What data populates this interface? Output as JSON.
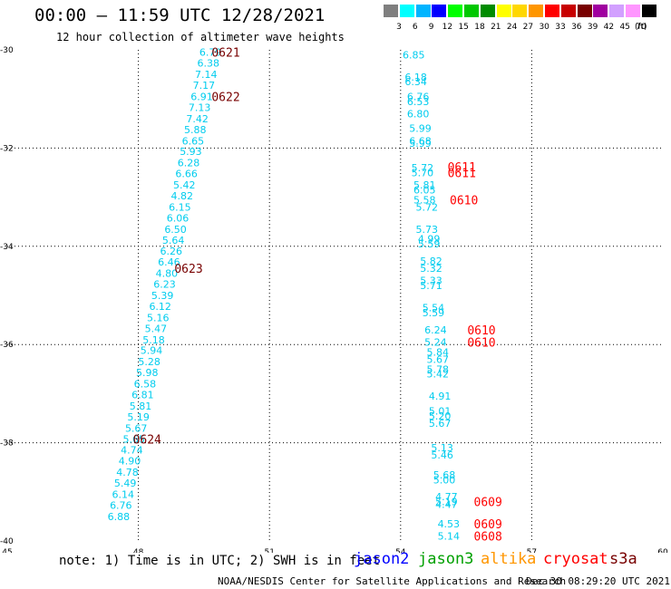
{
  "header": {
    "title": "00:00 – 11:59 UTC 12/28/2021",
    "subtitle": "12 hour collection of altimeter wave heights"
  },
  "legend": {
    "unit": "(ft)",
    "colors": [
      {
        "label": "3",
        "color": "#7f7f7f"
      },
      {
        "label": "6",
        "color": "#00ffff"
      },
      {
        "label": "9",
        "color": "#00b4ff"
      },
      {
        "label": "12",
        "color": "#0000ff"
      },
      {
        "label": "15",
        "color": "#00ff00"
      },
      {
        "label": "18",
        "color": "#00c800"
      },
      {
        "label": "21",
        "color": "#008c00"
      },
      {
        "label": "24",
        "color": "#ffff00"
      },
      {
        "label": "27",
        "color": "#ffd700"
      },
      {
        "label": "30",
        "color": "#ff9600"
      },
      {
        "label": "33",
        "color": "#ff0000"
      },
      {
        "label": "36",
        "color": "#c80000"
      },
      {
        "label": "39",
        "color": "#780000"
      },
      {
        "label": "42",
        "color": "#a000a0"
      },
      {
        "label": "45",
        "color": "#d2a0ff"
      },
      {
        "label": "70",
        "color": "#ff96ff"
      },
      {
        "label": "",
        "color": "#000000"
      }
    ]
  },
  "footer": {
    "note": "note: 1) Time is in UTC; 2) SWH is in feet",
    "satellites": [
      {
        "name": "jason2",
        "color": "#0000ff"
      },
      {
        "name": "jason3",
        "color": "#00a000"
      },
      {
        "name": "altika",
        "color": "#ff9600"
      },
      {
        "name": "cryosat",
        "color": "#ff0000"
      },
      {
        "name": "s3a",
        "color": "#780000"
      }
    ],
    "credit": "NOAA/NESDIS Center for Satellite Applications and Research",
    "timestamp": "Dec 30 08:29:20 UTC 2021"
  },
  "chart_data": {
    "type": "scatter",
    "xlim": [
      45,
      60
    ],
    "ylim": [
      -40,
      -30
    ],
    "x_ticks": [
      "45",
      "48",
      "51",
      "54",
      "57",
      "60"
    ],
    "y_ticks": [
      "-30",
      "-32",
      "-34",
      "-36",
      "-38",
      "-40"
    ],
    "grid": true,
    "value_color": "#00ccee",
    "time_colors": {
      "s3a": "#780000",
      "cryosat": "#ff0000"
    },
    "tracks": [
      {
        "name": "west",
        "points": [
          {
            "x": 49.65,
            "y": -30.05,
            "v": "6.79"
          },
          {
            "x": 49.6,
            "y": -30.27,
            "v": "6.38"
          },
          {
            "x": 49.55,
            "y": -30.5,
            "v": "7.14"
          },
          {
            "x": 49.5,
            "y": -30.72,
            "v": "7.17"
          },
          {
            "x": 49.45,
            "y": -30.95,
            "v": "6.91"
          },
          {
            "x": 49.4,
            "y": -31.17,
            "v": "7.13"
          },
          {
            "x": 49.35,
            "y": -31.4,
            "v": "7.42"
          },
          {
            "x": 49.3,
            "y": -31.62,
            "v": "5.88"
          },
          {
            "x": 49.25,
            "y": -31.85,
            "v": "6.65"
          },
          {
            "x": 49.2,
            "y": -32.07,
            "v": "5.93"
          },
          {
            "x": 49.15,
            "y": -32.3,
            "v": "6.28"
          },
          {
            "x": 49.1,
            "y": -32.52,
            "v": "6.66"
          },
          {
            "x": 49.05,
            "y": -32.75,
            "v": "5.42"
          },
          {
            "x": 49.0,
            "y": -32.97,
            "v": "4.82"
          },
          {
            "x": 48.95,
            "y": -33.2,
            "v": "6.15"
          },
          {
            "x": 48.9,
            "y": -33.42,
            "v": "6.06"
          },
          {
            "x": 48.85,
            "y": -33.65,
            "v": "6.50"
          },
          {
            "x": 48.8,
            "y": -33.87,
            "v": "5.64"
          },
          {
            "x": 48.75,
            "y": -34.1,
            "v": "6.26"
          },
          {
            "x": 48.7,
            "y": -34.32,
            "v": "6.46"
          },
          {
            "x": 48.65,
            "y": -34.55,
            "v": "4.80"
          },
          {
            "x": 48.6,
            "y": -34.77,
            "v": "6.23"
          },
          {
            "x": 48.55,
            "y": -35.0,
            "v": "5.39"
          },
          {
            "x": 48.5,
            "y": -35.22,
            "v": "6.12"
          },
          {
            "x": 48.45,
            "y": -35.45,
            "v": "5.16"
          },
          {
            "x": 48.4,
            "y": -35.67,
            "v": "5.47"
          },
          {
            "x": 48.35,
            "y": -35.9,
            "v": "5.18"
          },
          {
            "x": 48.3,
            "y": -36.12,
            "v": "5.94"
          },
          {
            "x": 48.25,
            "y": -36.35,
            "v": "5.28"
          },
          {
            "x": 48.2,
            "y": -36.57,
            "v": "5.98"
          },
          {
            "x": 48.15,
            "y": -36.8,
            "v": "6.58"
          },
          {
            "x": 48.1,
            "y": -37.02,
            "v": "6.81"
          },
          {
            "x": 48.05,
            "y": -37.25,
            "v": "5.81"
          },
          {
            "x": 48.0,
            "y": -37.47,
            "v": "5.19"
          },
          {
            "x": 47.95,
            "y": -37.7,
            "v": "5.67"
          },
          {
            "x": 47.9,
            "y": -37.92,
            "v": "5.65"
          },
          {
            "x": 47.85,
            "y": -38.15,
            "v": "4.74"
          },
          {
            "x": 47.8,
            "y": -38.37,
            "v": "4.90"
          },
          {
            "x": 47.75,
            "y": -38.6,
            "v": "4.78"
          },
          {
            "x": 47.7,
            "y": -38.82,
            "v": "5.49"
          },
          {
            "x": 47.65,
            "y": -39.05,
            "v": "6.14"
          },
          {
            "x": 47.6,
            "y": -39.27,
            "v": "6.76"
          },
          {
            "x": 47.55,
            "y": -39.5,
            "v": "6.88"
          }
        ]
      },
      {
        "name": "east",
        "points": [
          {
            "x": 54.3,
            "y": -30.1,
            "v": "6.85"
          },
          {
            "x": 54.35,
            "y": -30.55,
            "v": "6.18"
          },
          {
            "x": 54.35,
            "y": -30.65,
            "v": "6.34"
          },
          {
            "x": 54.4,
            "y": -30.95,
            "v": "6.76"
          },
          {
            "x": 54.4,
            "y": -31.05,
            "v": "6.53"
          },
          {
            "x": 54.4,
            "y": -31.3,
            "v": "6.80"
          },
          {
            "x": 54.45,
            "y": -31.6,
            "v": "5.99"
          },
          {
            "x": 54.45,
            "y": -31.85,
            "v": "6.68"
          },
          {
            "x": 54.45,
            "y": -31.9,
            "v": "5.99"
          },
          {
            "x": 54.5,
            "y": -32.4,
            "v": "5.72"
          },
          {
            "x": 54.5,
            "y": -32.5,
            "v": "5.70"
          },
          {
            "x": 54.55,
            "y": -32.75,
            "v": "5.81"
          },
          {
            "x": 54.55,
            "y": -32.85,
            "v": "6.05"
          },
          {
            "x": 54.55,
            "y": -33.05,
            "v": "5.58"
          },
          {
            "x": 54.6,
            "y": -33.2,
            "v": "5.72"
          },
          {
            "x": 54.6,
            "y": -33.65,
            "v": "5.73"
          },
          {
            "x": 54.65,
            "y": -33.85,
            "v": "4.99"
          },
          {
            "x": 54.65,
            "y": -33.95,
            "v": "5.59"
          },
          {
            "x": 54.7,
            "y": -34.3,
            "v": "5.82"
          },
          {
            "x": 54.7,
            "y": -34.45,
            "v": "5.32"
          },
          {
            "x": 54.7,
            "y": -34.7,
            "v": "5.33"
          },
          {
            "x": 54.7,
            "y": -34.8,
            "v": "5.71"
          },
          {
            "x": 54.75,
            "y": -35.25,
            "v": "5.54"
          },
          {
            "x": 54.75,
            "y": -35.35,
            "v": "5.59"
          },
          {
            "x": 54.8,
            "y": -35.7,
            "v": "6.24"
          },
          {
            "x": 54.8,
            "y": -35.95,
            "v": "5.24"
          },
          {
            "x": 54.85,
            "y": -36.15,
            "v": "5.84"
          },
          {
            "x": 54.85,
            "y": -36.3,
            "v": "5.67"
          },
          {
            "x": 54.85,
            "y": -36.5,
            "v": "5.78"
          },
          {
            "x": 54.85,
            "y": -36.6,
            "v": "5.42"
          },
          {
            "x": 54.9,
            "y": -37.05,
            "v": "4.91"
          },
          {
            "x": 54.9,
            "y": -37.35,
            "v": "5.01"
          },
          {
            "x": 54.9,
            "y": -37.45,
            "v": "5.20"
          },
          {
            "x": 54.9,
            "y": -37.6,
            "v": "5.67"
          },
          {
            "x": 54.95,
            "y": -38.1,
            "v": "5.13"
          },
          {
            "x": 54.95,
            "y": -38.25,
            "v": "5.46"
          },
          {
            "x": 55.0,
            "y": -38.65,
            "v": "5.68"
          },
          {
            "x": 55.0,
            "y": -38.75,
            "v": "5.00"
          },
          {
            "x": 55.05,
            "y": -39.1,
            "v": "4.77"
          },
          {
            "x": 55.05,
            "y": -39.2,
            "v": "5.19"
          },
          {
            "x": 55.05,
            "y": -39.25,
            "v": "4.47"
          },
          {
            "x": 55.1,
            "y": -39.65,
            "v": "4.53"
          },
          {
            "x": 55.1,
            "y": -39.9,
            "v": "5.14"
          }
        ]
      }
    ],
    "times": [
      {
        "x": 50.0,
        "y": -30.05,
        "t": "0621",
        "sat": "s3a"
      },
      {
        "x": 50.0,
        "y": -30.95,
        "t": "0622",
        "sat": "s3a"
      },
      {
        "x": 49.15,
        "y": -34.45,
        "t": "0623",
        "sat": "s3a"
      },
      {
        "x": 48.2,
        "y": -37.92,
        "t": "0624",
        "sat": "s3a"
      },
      {
        "x": 55.4,
        "y": -32.38,
        "t": "0611",
        "sat": "cryosat"
      },
      {
        "x": 55.4,
        "y": -32.5,
        "t": "0611",
        "sat": "cryosat"
      },
      {
        "x": 55.45,
        "y": -33.05,
        "t": "0610",
        "sat": "cryosat"
      },
      {
        "x": 55.85,
        "y": -35.7,
        "t": "0610",
        "sat": "cryosat"
      },
      {
        "x": 55.85,
        "y": -35.95,
        "t": "0610",
        "sat": "cryosat"
      },
      {
        "x": 56.0,
        "y": -39.2,
        "t": "0609",
        "sat": "cryosat"
      },
      {
        "x": 56.0,
        "y": -39.65,
        "t": "0609",
        "sat": "cryosat"
      },
      {
        "x": 56.0,
        "y": -39.9,
        "t": "0608",
        "sat": "cryosat"
      }
    ]
  }
}
